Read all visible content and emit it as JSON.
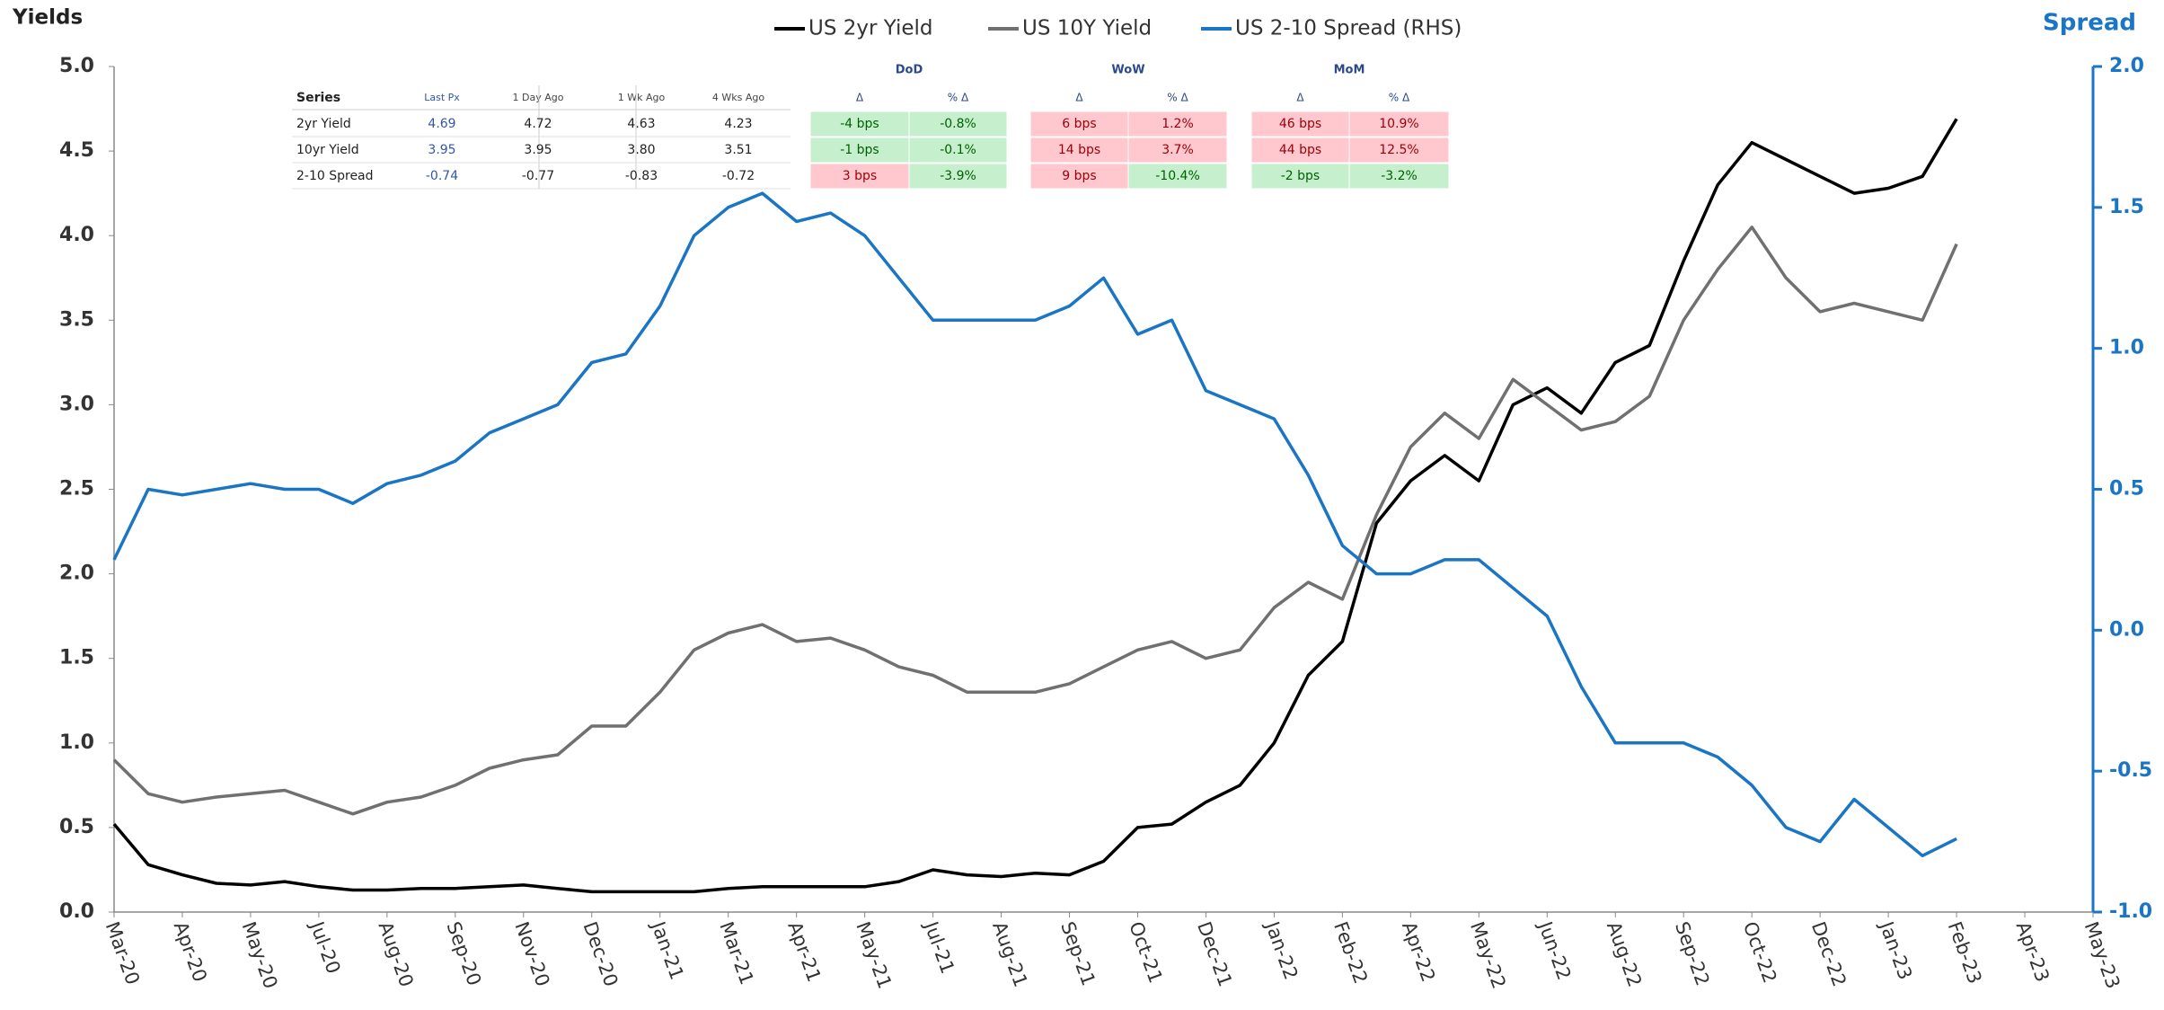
{
  "chart_data": {
    "type": "line",
    "y_axis_title": "Yields",
    "y2_axis_title": "Spread",
    "categories": [
      "Mar-20",
      null,
      "Apr-20",
      null,
      "May-20",
      null,
      "Jul-20",
      null,
      "Aug-20",
      null,
      "Sep-20",
      null,
      "Nov-20",
      null,
      "Dec-20",
      null,
      "Jan-21",
      null,
      "Mar-21",
      null,
      "Apr-21",
      null,
      "May-21",
      null,
      "Jul-21",
      null,
      "Aug-21",
      null,
      "Sep-21",
      null,
      "Oct-21",
      null,
      "Dec-21",
      null,
      "Jan-22",
      null,
      "Feb-22",
      null,
      "Apr-22",
      null,
      "May-22",
      null,
      "Jun-22",
      null,
      "Aug-22",
      null,
      "Sep-22",
      null,
      "Oct-22",
      null,
      "Dec-22",
      null,
      "Jan-23",
      null,
      "Feb-23",
      null,
      "Apr-23",
      null,
      "May-23"
    ],
    "series": [
      {
        "name": "US 2yr Yield",
        "color": "#000000",
        "axis": "y",
        "values": [
          0.52,
          0.28,
          0.22,
          0.17,
          0.16,
          0.18,
          0.15,
          0.13,
          0.13,
          0.14,
          0.14,
          0.15,
          0.16,
          0.14,
          0.12,
          0.12,
          0.12,
          0.12,
          0.14,
          0.15,
          0.15,
          0.15,
          0.15,
          0.18,
          0.25,
          0.22,
          0.21,
          0.23,
          0.22,
          0.3,
          0.5,
          0.52,
          0.65,
          0.75,
          1.0,
          1.4,
          1.6,
          2.3,
          2.55,
          2.7,
          2.55,
          3.0,
          3.1,
          2.95,
          3.25,
          3.35,
          3.85,
          4.3,
          4.55,
          4.45,
          4.35,
          4.25,
          4.28,
          4.35,
          4.69,
          null,
          null,
          null,
          null
        ]
      },
      {
        "name": "US 10Y Yield",
        "color": "#707070",
        "axis": "y",
        "values": [
          0.9,
          0.7,
          0.65,
          0.68,
          0.7,
          0.72,
          0.65,
          0.58,
          0.65,
          0.68,
          0.75,
          0.85,
          0.9,
          0.93,
          1.1,
          1.1,
          1.3,
          1.55,
          1.65,
          1.7,
          1.6,
          1.62,
          1.55,
          1.45,
          1.4,
          1.3,
          1.3,
          1.3,
          1.35,
          1.45,
          1.55,
          1.6,
          1.5,
          1.55,
          1.8,
          1.95,
          1.85,
          2.35,
          2.75,
          2.95,
          2.8,
          3.15,
          3.0,
          2.85,
          2.9,
          3.05,
          3.5,
          3.8,
          4.05,
          3.75,
          3.55,
          3.6,
          3.55,
          3.5,
          3.95,
          null,
          null,
          null,
          null
        ]
      },
      {
        "name": "US 2-10 Spread (RHS)",
        "color": "#1a75c4",
        "axis": "y2",
        "values": [
          0.25,
          0.5,
          0.48,
          0.5,
          0.52,
          0.5,
          0.5,
          0.45,
          0.52,
          0.55,
          0.6,
          0.7,
          0.75,
          0.8,
          0.95,
          0.98,
          1.15,
          1.4,
          1.5,
          1.55,
          1.45,
          1.48,
          1.4,
          1.25,
          1.1,
          1.1,
          1.1,
          1.1,
          1.15,
          1.25,
          1.05,
          1.1,
          0.85,
          0.8,
          0.75,
          0.55,
          0.3,
          0.2,
          0.2,
          0.25,
          0.25,
          0.15,
          0.05,
          -0.2,
          -0.4,
          -0.4,
          -0.4,
          -0.45,
          -0.55,
          -0.7,
          -0.75,
          -0.6,
          -0.7,
          -0.8,
          -0.74,
          null,
          null,
          null,
          null
        ]
      }
    ],
    "ylim": [
      0,
      5
    ],
    "yticks": [
      {
        "value": 0,
        "label": "0.0"
      },
      0.5,
      {
        "value": 1,
        "label": "1.0"
      },
      1.5,
      {
        "value": 2,
        "label": "2.0"
      },
      2.5,
      {
        "value": 3,
        "label": "3.0"
      },
      3.5,
      {
        "value": 4,
        "label": "4.0"
      },
      4.5,
      {
        "value": 5,
        "label": "5.0"
      }
    ],
    "y2lim": [
      -1,
      2
    ],
    "y2ticks": [
      {
        "value": -1,
        "label": "-1.0"
      },
      -0.5,
      {
        "value": 0,
        "label": "0.0"
      },
      0.5,
      {
        "value": 1,
        "label": "1.0"
      },
      1.5,
      {
        "value": 2,
        "label": "2.0"
      }
    ],
    "y2_color": "#1a75c4",
    "grid": false,
    "legend": "top",
    "table": {
      "columns": [
        "Series",
        "Last Px",
        "1 Day Ago",
        "1 Wk Ago",
        "4 Wks Ago"
      ],
      "groups": [
        "DoD",
        "WoW",
        "MoM"
      ],
      "sub_headers": [
        "Δ",
        "% Δ"
      ],
      "rows": [
        {
          "cells": [
            "2yr Yield",
            "4.69",
            "4.72",
            "4.63",
            "4.23",
            "-4 bps",
            "-0.8%",
            "6 bps",
            "1.2%",
            "46 bps",
            "10.9%"
          ],
          "fills": [
            "#c6efce",
            "#c6efce",
            "#ffc7ce",
            "#ffc7ce",
            "#ffc7ce",
            "#ffc7ce"
          ]
        },
        {
          "cells": [
            "10yr Yield",
            "3.95",
            "3.95",
            "3.80",
            "3.51",
            "-1 bps",
            "-0.1%",
            "14 bps",
            "3.7%",
            "44 bps",
            "12.5%"
          ],
          "fills": [
            "#c6efce",
            "#c6efce",
            "#ffc7ce",
            "#ffc7ce",
            "#ffc7ce",
            "#ffc7ce"
          ]
        },
        {
          "cells": [
            "2-10 Spread",
            "-0.74",
            "-0.77",
            "-0.83",
            "-0.72",
            "3 bps",
            "-3.9%",
            "9 bps",
            "-10.4%",
            "-2 bps",
            "-3.2%"
          ],
          "fills": [
            "#ffc7ce",
            "#c6efce",
            "#ffc7ce",
            "#c6efce",
            "#c6efce",
            "#c6efce"
          ]
        }
      ]
    }
  }
}
